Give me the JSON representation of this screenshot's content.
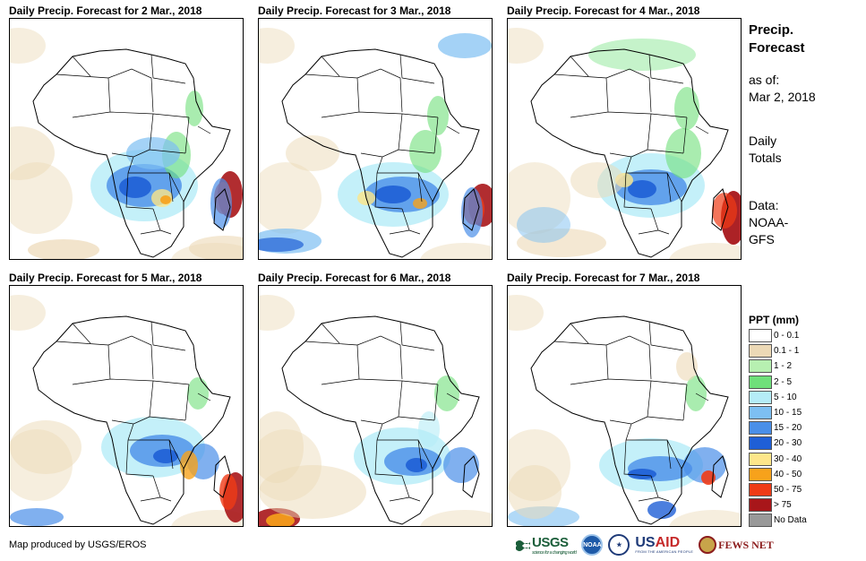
{
  "panels": [
    {
      "title": "Daily Precip. Forecast for 2 Mar., 2018"
    },
    {
      "title": "Daily Precip. Forecast for 3 Mar., 2018"
    },
    {
      "title": "Daily Precip. Forecast for 4 Mar., 2018"
    },
    {
      "title": "Daily Precip. Forecast for 5 Mar., 2018"
    },
    {
      "title": "Daily Precip. Forecast for 6 Mar., 2018"
    },
    {
      "title": "Daily Precip. Forecast for 7 Mar., 2018"
    }
  ],
  "side": {
    "title_line1": "Precip.",
    "title_line2": "Forecast",
    "asof_label": "as of:",
    "asof_date": "Mar 2, 2018",
    "totals_line1": "Daily",
    "totals_line2": "Totals",
    "data_line1": "Data:",
    "data_line2": "NOAA-",
    "data_line3": "GFS"
  },
  "legend": {
    "title": "PPT (mm)",
    "items": [
      {
        "label": "0 - 0.1",
        "color": "#ffffff"
      },
      {
        "label": "0.1 - 1",
        "color": "#ecd9b6"
      },
      {
        "label": "1 - 2",
        "color": "#b7f0b1"
      },
      {
        "label": "2 - 5",
        "color": "#6fe07a"
      },
      {
        "label": "5 - 10",
        "color": "#b5ecf7"
      },
      {
        "label": "10 - 15",
        "color": "#7dbff2"
      },
      {
        "label": "15 - 20",
        "color": "#4a8fe8"
      },
      {
        "label": "20 - 30",
        "color": "#1f5fd6"
      },
      {
        "label": "30 - 40",
        "color": "#fde68a"
      },
      {
        "label": "40 - 50",
        "color": "#f7a21b"
      },
      {
        "label": "50 - 75",
        "color": "#ef3b16"
      },
      {
        "label": "> 75",
        "color": "#a8161a"
      },
      {
        "label": "No Data",
        "color": "#999999"
      }
    ]
  },
  "credit": "Map produced by USGS/EROS",
  "logos": {
    "usgs": "USGS",
    "usgs_tag": "science for a changing world",
    "noaa": "NOAA",
    "usaid_us": "US",
    "usaid_aid": "AID",
    "usaid_sub": "FROM THE AMERICAN PEOPLE",
    "fews": "FEWS NET"
  }
}
